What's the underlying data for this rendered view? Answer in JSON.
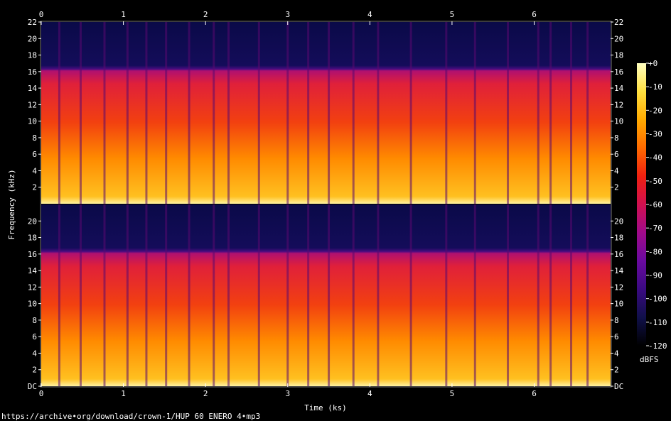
{
  "source_url": "https://archive•org/download/crown-1/HUP 60 ENERO 4•mp3",
  "chart_data": {
    "type": "heatmap",
    "subtype": "stereo spectrogram",
    "xlabel": "Time (ks)",
    "ylabel": "Frequency (kHz)",
    "x_ticks": [
      "0",
      "1",
      "2",
      "3",
      "4",
      "5",
      "6"
    ],
    "xlim": [
      0,
      6.93
    ],
    "y_ticks_top_channel": [
      "2",
      "4",
      "6",
      "8",
      "10",
      "12",
      "14",
      "16",
      "18",
      "20",
      "22"
    ],
    "y_ticks_bottom_channel": [
      "DC",
      "2",
      "4",
      "6",
      "8",
      "10",
      "12",
      "14",
      "16",
      "18",
      "20"
    ],
    "ylim_khz": [
      0,
      22
    ],
    "channels": 2,
    "lowpass_cutoff_khz": 16.3,
    "colorbar": {
      "unit": "dBFS",
      "ticks": [
        "+0",
        "-10",
        "-20",
        "-30",
        "-40",
        "-50",
        "-60",
        "-70",
        "-80",
        "-90",
        "-100",
        "-110",
        "-120"
      ],
      "range": [
        -120,
        0
      ],
      "colors": [
        "#000000",
        "#10104a",
        "#3a0a82",
        "#6a0aa0",
        "#a00a8a",
        "#d01050",
        "#f02010",
        "#ff6a00",
        "#ffaa00",
        "#ffe040",
        "#ffffc0"
      ]
    },
    "notable_gaps_ks": [
      0.22,
      0.48,
      0.77,
      1.05,
      1.28,
      1.52,
      1.8,
      2.1,
      2.28,
      2.65,
      3.0,
      3.25,
      3.5,
      3.8,
      4.1,
      4.5,
      4.93,
      5.28,
      5.68,
      6.05,
      6.2,
      6.45,
      6.65
    ]
  }
}
